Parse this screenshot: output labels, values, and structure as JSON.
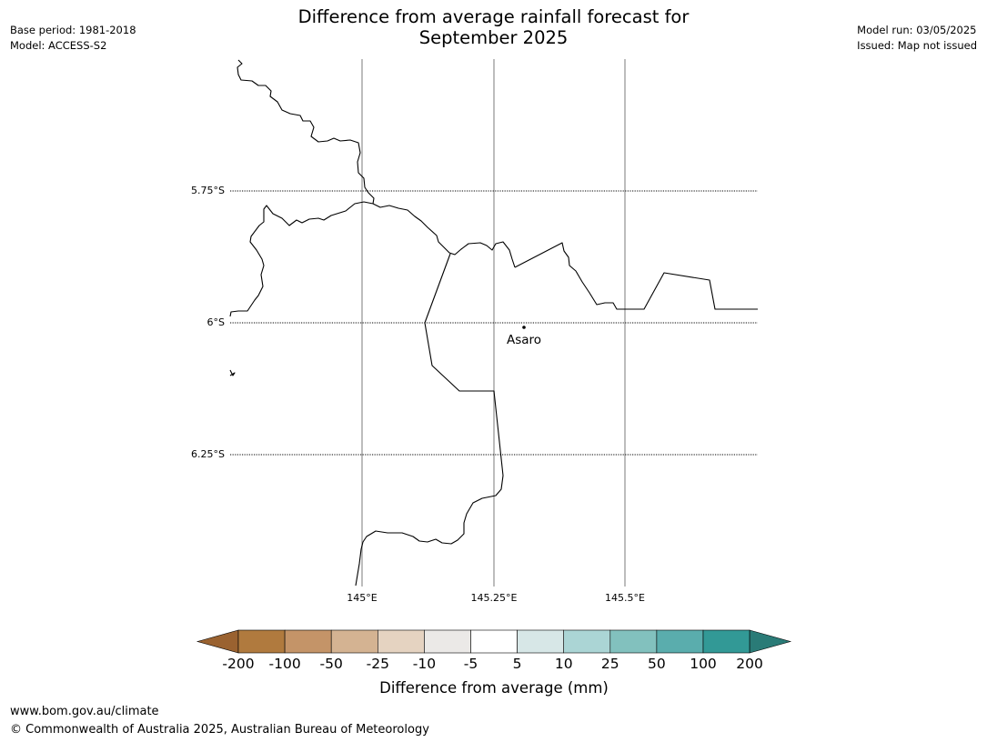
{
  "header": {
    "title_line1": "Difference from average rainfall forecast for",
    "title_line2": "September 2025",
    "base_period": "Base period: 1981-2018",
    "model": "Model: ACCESS-S2",
    "model_run": "Model run: 03/05/2025",
    "issued": "Issued: Map not issued"
  },
  "map": {
    "lat_labels": [
      "5.75°S",
      "6°S",
      "6.25°S"
    ],
    "lon_labels": [
      "145°E",
      "145.25°E",
      "145.5°E"
    ],
    "place": {
      "name": "Asaro",
      "lon": 145.3,
      "lat": -6.01
    },
    "colors": {
      "boundary": "#000000",
      "meridian": "#999999",
      "parallel": "#000000"
    }
  },
  "legend": {
    "title": "Difference from average (mm)",
    "tick_labels": [
      "-200",
      "-100",
      "-50",
      "-25",
      "-10",
      "-5",
      "5",
      "10",
      "25",
      "50",
      "100",
      "200"
    ],
    "colors": [
      "#9a6230",
      "#b07a3e",
      "#c49468",
      "#d4b392",
      "#e5d3c1",
      "#ebe9e7",
      "#ffffff",
      "#d7e7e7",
      "#abd5d5",
      "#82c1be",
      "#5aadad",
      "#329996",
      "#2a7b77"
    ]
  },
  "footer": {
    "url": "www.bom.gov.au/climate",
    "copyright": "© Commonwealth of Australia 2025, Australian Bureau of Meteorology"
  }
}
